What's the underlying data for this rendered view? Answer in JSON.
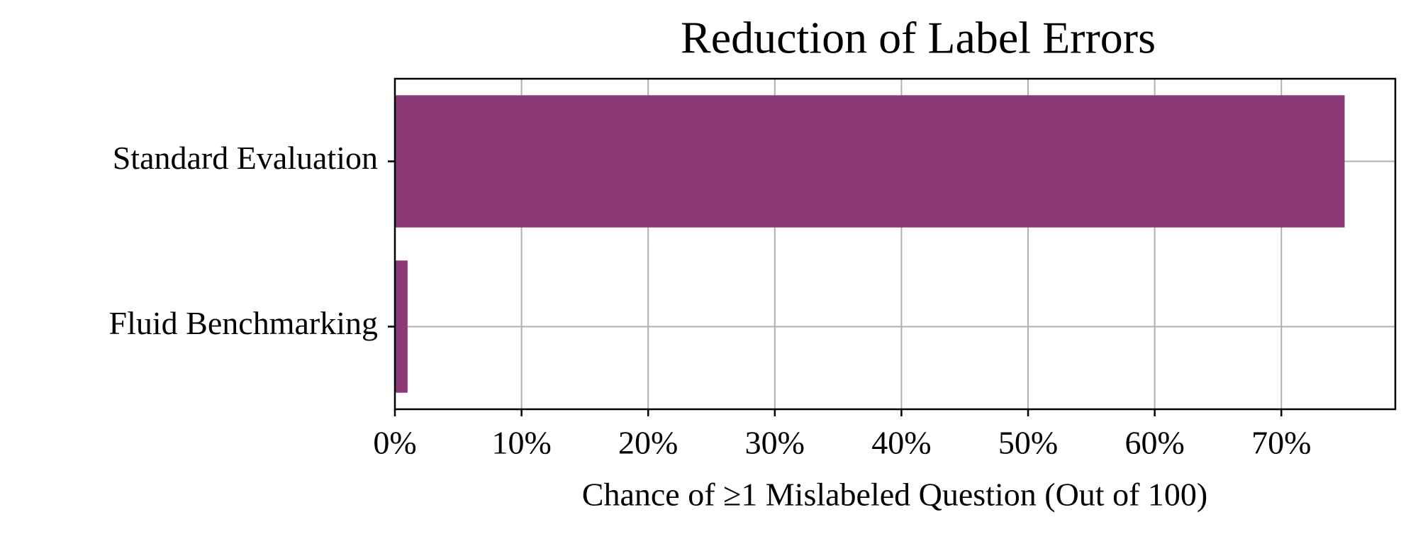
{
  "chart_data": {
    "type": "barh",
    "title": "Reduction of Label Errors",
    "categories": [
      "Standard Evaluation",
      "Fluid Benchmarking"
    ],
    "values": [
      75,
      1
    ],
    "color": "#8b3a77",
    "xlabel": "Chance of ≥1 Mislabeled Question (Out of 100)",
    "xlim": [
      0,
      79
    ],
    "xticks": [
      {
        "value": 0,
        "label": "0%"
      },
      {
        "value": 10,
        "label": "10%"
      },
      {
        "value": 20,
        "label": "20%"
      },
      {
        "value": 30,
        "label": "30%"
      },
      {
        "value": 40,
        "label": "40%"
      },
      {
        "value": 50,
        "label": "50%"
      },
      {
        "value": 60,
        "label": "60%"
      },
      {
        "value": 70,
        "label": "70%"
      }
    ],
    "grid": true
  }
}
